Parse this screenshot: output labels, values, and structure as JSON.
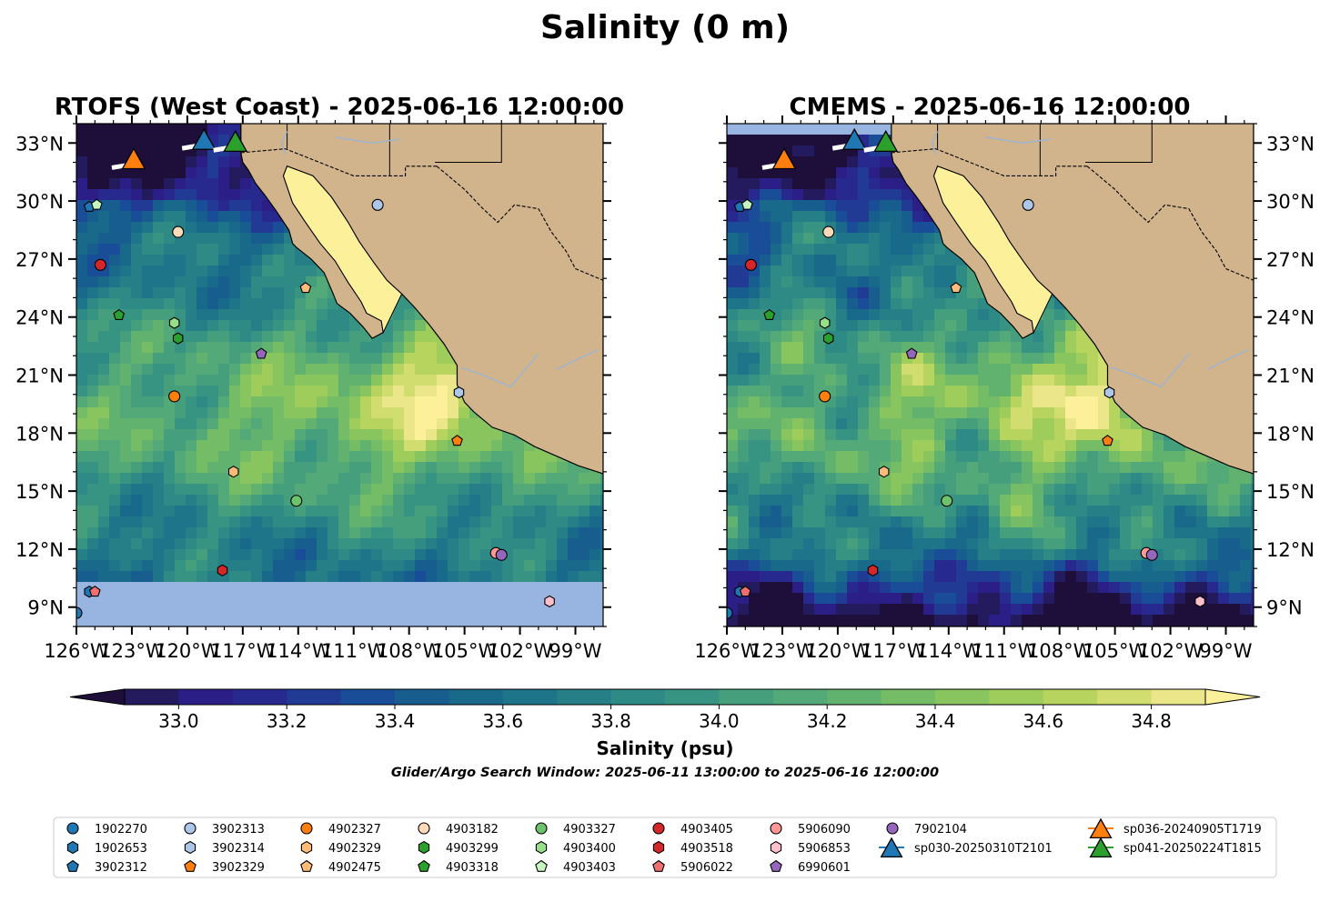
{
  "title": "Salinity (0 m)",
  "chart_data": {
    "type": "heatmap",
    "panels": [
      {
        "title": "RTOFS (West Coast) - 2025-06-16 12:00:00",
        "ylabels_side": "left"
      },
      {
        "title": "CMEMS - 2025-06-16 12:00:00",
        "ylabels_side": "right"
      }
    ],
    "lon_range": [
      -126,
      -97.5
    ],
    "lat_range": [
      8,
      34
    ],
    "x_ticks": [
      -126,
      -123,
      -120,
      -117,
      -114,
      -111,
      -108,
      -105,
      -102,
      -99
    ],
    "x_tick_labels": [
      "126°W",
      "123°W",
      "120°W",
      "117°W",
      "114°W",
      "111°W",
      "108°W",
      "105°W",
      "102°W",
      "99°W"
    ],
    "y_ticks": [
      9,
      12,
      15,
      18,
      21,
      24,
      27,
      30,
      33
    ],
    "y_tick_labels": [
      "9°N",
      "12°N",
      "15°N",
      "18°N",
      "21°N",
      "24°N",
      "27°N",
      "30°N",
      "33°N"
    ],
    "colorbar": {
      "label": "Salinity (psu)",
      "vmin": 32.9,
      "vmax": 34.9,
      "step": 0.1,
      "extend": "both",
      "ticks": [
        33.0,
        33.2,
        33.4,
        33.6,
        33.8,
        34.0,
        34.2,
        34.4,
        34.6,
        34.8
      ],
      "tick_labels": [
        "33.0",
        "33.2",
        "33.4",
        "33.6",
        "33.8",
        "34.0",
        "34.2",
        "34.4",
        "34.6",
        "34.8"
      ],
      "colors": [
        "#241a5e",
        "#2b1e86",
        "#27298f",
        "#213a94",
        "#194d97",
        "#175e8f",
        "#19698a",
        "#1e7488",
        "#267f86",
        "#2e8a85",
        "#389482",
        "#459f7c",
        "#53a977",
        "#62b26f",
        "#74bc66",
        "#88c55f",
        "#9fcd5c",
        "#b7d55e",
        "#d1dd6e",
        "#ebe689"
      ],
      "over_color": "#fdf09a",
      "under_color": "#1d0e3a"
    },
    "land_color": "#d2b48c",
    "nodata_color": "#98b4e0",
    "gulf_salinity": 35.0,
    "points": [
      {
        "id": "1902270",
        "lon": -126.0,
        "lat": 8.7
      },
      {
        "id": "1902653",
        "lon": -125.3,
        "lat": 9.8
      },
      {
        "id": "3902312",
        "lon": -125.3,
        "lat": 29.7
      },
      {
        "id": "3902313",
        "lon": -109.7,
        "lat": 29.8
      },
      {
        "id": "3902314",
        "lon": -105.3,
        "lat": 20.1
      },
      {
        "id": "3902329",
        "lon": -105.4,
        "lat": 17.6
      },
      {
        "id": "4902327",
        "lon": -120.7,
        "lat": 19.9
      },
      {
        "id": "4902329",
        "lon": -117.5,
        "lat": 16.0
      },
      {
        "id": "4902475",
        "lon": -113.6,
        "lat": 25.5
      },
      {
        "id": "4903182",
        "lon": -120.5,
        "lat": 28.4
      },
      {
        "id": "4903299",
        "lon": -120.5,
        "lat": 22.9
      },
      {
        "id": "4903318",
        "lon": -123.7,
        "lat": 24.1
      },
      {
        "id": "4903327",
        "lon": -114.1,
        "lat": 14.5
      },
      {
        "id": "4903400",
        "lon": -120.7,
        "lat": 23.7
      },
      {
        "id": "4903403",
        "lon": -124.9,
        "lat": 29.8
      },
      {
        "id": "4903405",
        "lon": -124.7,
        "lat": 26.7
      },
      {
        "id": "4903518",
        "lon": -118.1,
        "lat": 10.9
      },
      {
        "id": "5906022",
        "lon": -125.0,
        "lat": 9.8
      },
      {
        "id": "5906090",
        "lon": -103.3,
        "lat": 11.8
      },
      {
        "id": "5906853",
        "lon": -100.4,
        "lat": 9.3
      },
      {
        "id": "6990601",
        "lon": -116.0,
        "lat": 22.1
      },
      {
        "id": "7902104",
        "lon": -103.0,
        "lat": 11.7
      },
      {
        "id": "sp030-20250310T2101",
        "lon": -119.1,
        "lat": 33.1
      },
      {
        "id": "sp036-20240905T1719",
        "lon": -122.9,
        "lat": 32.1
      },
      {
        "id": "sp041-20250224T1815",
        "lon": -117.4,
        "lat": 33.0
      }
    ]
  },
  "legend": {
    "items": [
      {
        "label": "1902270",
        "marker": "circle",
        "color": "#1f77b4"
      },
      {
        "label": "1902653",
        "marker": "hexagon",
        "color": "#1f77b4"
      },
      {
        "label": "3902312",
        "marker": "pentagon",
        "color": "#1f77b4"
      },
      {
        "label": "3902313",
        "marker": "circle",
        "color": "#aec7e8"
      },
      {
        "label": "3902314",
        "marker": "hexagon",
        "color": "#aec7e8"
      },
      {
        "label": "3902329",
        "marker": "pentagon",
        "color": "#ff7f0e"
      },
      {
        "label": "4902327",
        "marker": "circle",
        "color": "#ff7f0e"
      },
      {
        "label": "4902329",
        "marker": "hexagon",
        "color": "#ffbb78"
      },
      {
        "label": "4902475",
        "marker": "pentagon",
        "color": "#ffbb78"
      },
      {
        "label": "4903182",
        "marker": "circle",
        "color": "#ffdab9"
      },
      {
        "label": "4903299",
        "marker": "hexagon",
        "color": "#2ca02c"
      },
      {
        "label": "4903318",
        "marker": "pentagon",
        "color": "#2ca02c"
      },
      {
        "label": "4903327",
        "marker": "circle",
        "color": "#6cc36c"
      },
      {
        "label": "4903400",
        "marker": "hexagon",
        "color": "#98df8a"
      },
      {
        "label": "4903403",
        "marker": "pentagon",
        "color": "#c7f5c0"
      },
      {
        "label": "4903405",
        "marker": "circle",
        "color": "#d62728"
      },
      {
        "label": "4903518",
        "marker": "hexagon",
        "color": "#d62728"
      },
      {
        "label": "5906022",
        "marker": "pentagon",
        "color": "#f07070"
      },
      {
        "label": "5906090",
        "marker": "circle",
        "color": "#ff9896"
      },
      {
        "label": "5906853",
        "marker": "hexagon",
        "color": "#ffc0cb"
      },
      {
        "label": "6990601",
        "marker": "pentagon",
        "color": "#9467bd"
      },
      {
        "label": "7902104",
        "marker": "circle",
        "color": "#9467bd"
      },
      {
        "label": "sp030-20250310T2101",
        "marker": "triangle",
        "color": "#1f77b4"
      },
      {
        "label": "sp036-20240905T1719",
        "marker": "triangle",
        "color": "#ff7f0e"
      },
      {
        "label": "sp041-20250224T1815",
        "marker": "triangle",
        "color": "#2ca02c"
      }
    ]
  },
  "search_window_note": "Glider/Argo Search Window: 2025-06-11 13:00:00 to 2025-06-16 12:00:00"
}
